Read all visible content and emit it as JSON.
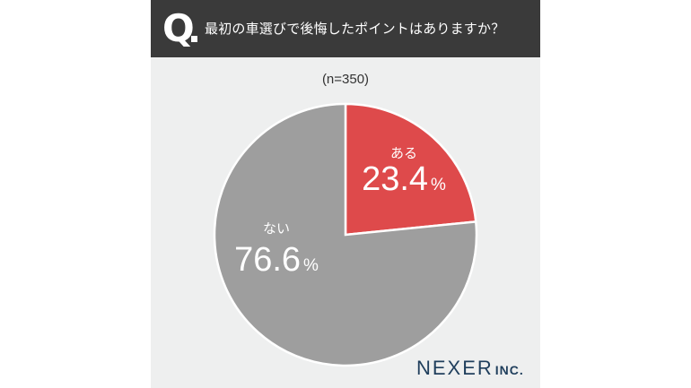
{
  "question": {
    "mark": "Q",
    "text": "最初の車選びで後悔したポイントはありますか？"
  },
  "sample_size": "(n=350)",
  "logo": {
    "main": "NEXER",
    "suffix": "INC."
  },
  "colors": {
    "header_bg": "#3a3a3a",
    "card_bg": "#eeefef",
    "yes": "#de4a4b",
    "no": "#9e9e9e",
    "logo": "#1f3e5c"
  },
  "chart_data": {
    "type": "pie",
    "categories": [
      "ある",
      "ない"
    ],
    "values": [
      23.4,
      76.6
    ],
    "value_labels": [
      "23.4",
      "76.6"
    ],
    "unit": "%",
    "colors": [
      "#de4a4b",
      "#9e9e9e"
    ],
    "start": "12 o'clock, clockwise"
  }
}
